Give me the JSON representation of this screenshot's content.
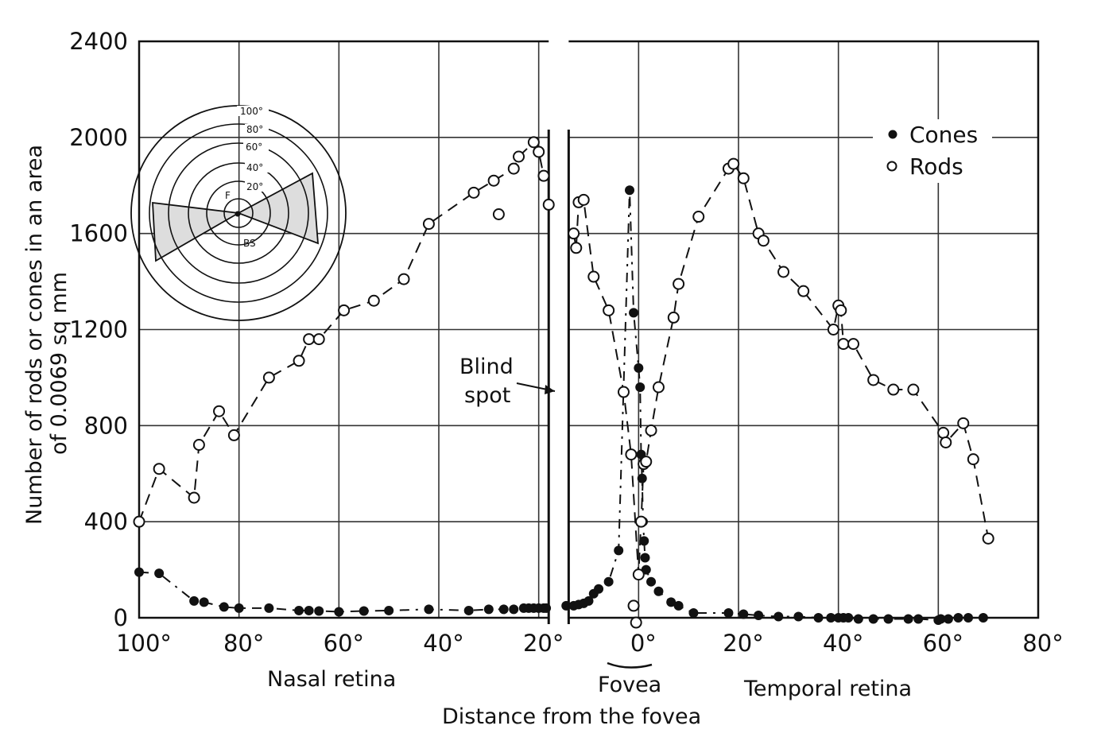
{
  "chart_data": {
    "type": "scatter",
    "xlabel": "Distance from the fovea",
    "ylabel": "Number of rods or cones in an area of 0.0069 sq mm",
    "ylabel_lines": [
      "Number of rods or cones in an area",
      "of 0.0069 sq mm"
    ],
    "xlim": [
      -100,
      80
    ],
    "ylim": [
      0,
      2400
    ],
    "grid": true,
    "legend_position": "top-right",
    "x_ticks": [
      {
        "value": -100,
        "label": "100°"
      },
      {
        "value": -80,
        "label": "80°"
      },
      {
        "value": -60,
        "label": "60°"
      },
      {
        "value": -40,
        "label": "40°"
      },
      {
        "value": -20,
        "label": "20°"
      },
      {
        "value": 0,
        "label": "0°"
      },
      {
        "value": 20,
        "label": "20°"
      },
      {
        "value": 40,
        "label": "40°"
      },
      {
        "value": 60,
        "label": "60°"
      },
      {
        "value": 80,
        "label": "80°"
      }
    ],
    "y_ticks": [
      0,
      400,
      800,
      1200,
      1600,
      2000,
      2400
    ],
    "region_labels": [
      {
        "text": "Nasal retina",
        "x": -60
      },
      {
        "text": "Fovea",
        "x": -1
      },
      {
        "text": "Temporal retina",
        "x": 40
      }
    ],
    "annotations": [
      {
        "text_lines": [
          "Blind",
          "spot"
        ],
        "x": -30,
        "y": 950
      }
    ],
    "blind_spot": {
      "x_range": [
        -18,
        -14
      ]
    },
    "series": [
      {
        "name": "Cones",
        "marker": "filled-circle",
        "x": [
          -100,
          -96,
          -89,
          -87,
          -83,
          -80,
          -74,
          -68,
          -66,
          -64,
          -60,
          -55,
          -50,
          -42,
          -34,
          -30,
          -27,
          -25,
          -23,
          -22,
          -21,
          -20,
          -19,
          -18.5,
          -14.5,
          -13,
          -12,
          -11,
          -10,
          -9,
          -8,
          -6,
          -4,
          -1.8,
          -1,
          0,
          0.3,
          0.5,
          0.7,
          0.9,
          1.1,
          1.3,
          1.5,
          2.5,
          4,
          6.5,
          8,
          11,
          18,
          21,
          24,
          28,
          32,
          36,
          38.5,
          40,
          41,
          42,
          44,
          47,
          50,
          54,
          56,
          60,
          60.5,
          62,
          64,
          66,
          69
        ],
        "values": [
          190,
          185,
          70,
          65,
          45,
          40,
          40,
          30,
          30,
          28,
          25,
          28,
          30,
          35,
          30,
          35,
          35,
          35,
          40,
          40,
          40,
          40,
          40,
          40,
          50,
          50,
          55,
          60,
          70,
          100,
          120,
          150,
          280,
          1780,
          1270,
          1040,
          960,
          680,
          580,
          400,
          320,
          250,
          200,
          150,
          110,
          65,
          50,
          20,
          20,
          15,
          10,
          5,
          5,
          0,
          0,
          0,
          0,
          0,
          -5,
          -5,
          -5,
          -5,
          -5,
          -10,
          -5,
          -5,
          0,
          0,
          0
        ]
      },
      {
        "name": "Rods",
        "marker": "open-circle",
        "x": [
          -100,
          -96,
          -89,
          -88,
          -84,
          -81,
          -74,
          -68,
          -66,
          -64,
          -59,
          -53,
          -47,
          -42,
          -33,
          -29,
          -28,
          -25,
          -24,
          -21,
          -20,
          -19,
          -18,
          -13,
          -12.5,
          -12,
          -11,
          -9,
          -6,
          -3,
          -1.5,
          -1,
          -0.5,
          0,
          0.5,
          1,
          1.5,
          2.5,
          4,
          7,
          8,
          12,
          18,
          19,
          21,
          24,
          25,
          29,
          33,
          39,
          40,
          40.5,
          41,
          43,
          47,
          51,
          55,
          61,
          61.5,
          65,
          67,
          70
        ],
        "values": [
          400,
          620,
          500,
          720,
          860,
          760,
          1000,
          1070,
          1160,
          1160,
          1280,
          1320,
          1410,
          1640,
          1770,
          1820,
          1680,
          1870,
          1920,
          1980,
          1940,
          1840,
          1720,
          1600,
          1540,
          1730,
          1740,
          1420,
          1280,
          940,
          680,
          50,
          -20,
          180,
          400,
          640,
          650,
          780,
          960,
          1250,
          1390,
          1670,
          1870,
          1890,
          1830,
          1600,
          1570,
          1440,
          1360,
          1200,
          1300,
          1280,
          1140,
          1140,
          990,
          950,
          950,
          770,
          730,
          810,
          660,
          330
        ]
      }
    ],
    "inset": {
      "ring_labels": [
        "100°",
        "80°",
        "60°",
        "40°",
        "20°"
      ],
      "marker_labels": [
        "F",
        "BS"
      ]
    }
  }
}
